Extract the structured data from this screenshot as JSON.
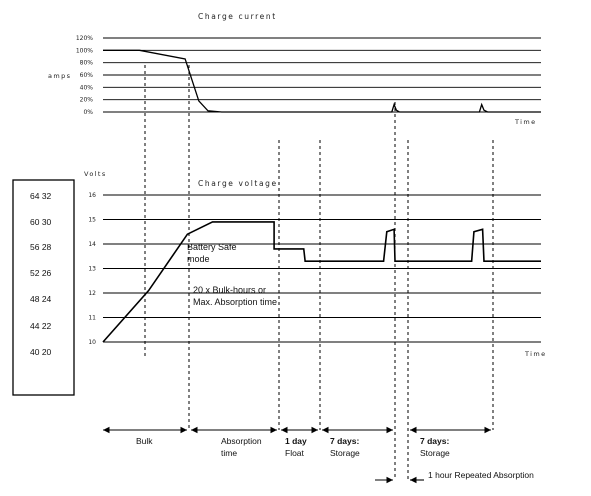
{
  "chart_data": [
    {
      "type": "line",
      "title": "Charge current",
      "ylabel": "amps",
      "xlabel": "Time",
      "y_ticks": [
        "120%",
        "100%",
        "80%",
        "60%",
        "40%",
        "20%",
        "0%"
      ],
      "ylim": [
        0,
        120
      ],
      "grid": true,
      "series": [
        {
          "values": [
            [
              0,
              100
            ],
            [
              8,
              100
            ],
            [
              18,
              86
            ],
            [
              19.5,
              52
            ],
            [
              21,
              18
            ],
            [
              23,
              2
            ],
            [
              26,
              0
            ],
            [
              63.3,
              0
            ],
            [
              63.8,
              12
            ],
            [
              64.3,
              3
            ],
            [
              65,
              0
            ],
            [
              82.5,
              0
            ],
            [
              83,
              12
            ],
            [
              83.5,
              3
            ],
            [
              84.3,
              0
            ],
            [
              96,
              0
            ]
          ]
        }
      ]
    },
    {
      "type": "line",
      "title": "Charge voltage",
      "ylabel": "Volts",
      "xlabel": "Time",
      "y_ticks": [
        "16",
        "15",
        "14",
        "13",
        "12",
        "11",
        "10"
      ],
      "ylim": [
        10,
        16
      ],
      "grid": true,
      "series": [
        {
          "values": [
            [
              0,
              10
            ],
            [
              10,
              12.1
            ],
            [
              18.5,
              14.4
            ],
            [
              24,
              14.9
            ],
            [
              37.5,
              14.9
            ],
            [
              37.5,
              13.8
            ],
            [
              44,
              13.8
            ],
            [
              44.3,
              13.3
            ],
            [
              61.5,
              13.3
            ],
            [
              62.2,
              14.5
            ],
            [
              63.8,
              14.6
            ],
            [
              64,
              13.3
            ],
            [
              80.8,
              13.3
            ],
            [
              81.3,
              14.5
            ],
            [
              83.2,
              14.6
            ],
            [
              83.5,
              13.3
            ],
            [
              96,
              13.3
            ]
          ]
        }
      ],
      "annotations": [
        "Battery Safe mode",
        "20 x Bulk-hours or",
        "Max. Absorption time"
      ]
    }
  ],
  "voltage_scale_box": [
    "64 32",
    "60 30",
    "56 28",
    "52 26",
    "48 24",
    "44 22",
    "40 20"
  ],
  "phases": {
    "bulk": "Bulk",
    "absorption_1": "Absorption",
    "absorption_2": "time",
    "float_1": "1 day",
    "float_2": "Float",
    "storage_a_1": "7 days:",
    "storage_a_2": "Storage",
    "storage_b_1": "7 days:",
    "storage_b_2": "Storage",
    "repeated": "1 hour Repeated Absorption"
  }
}
